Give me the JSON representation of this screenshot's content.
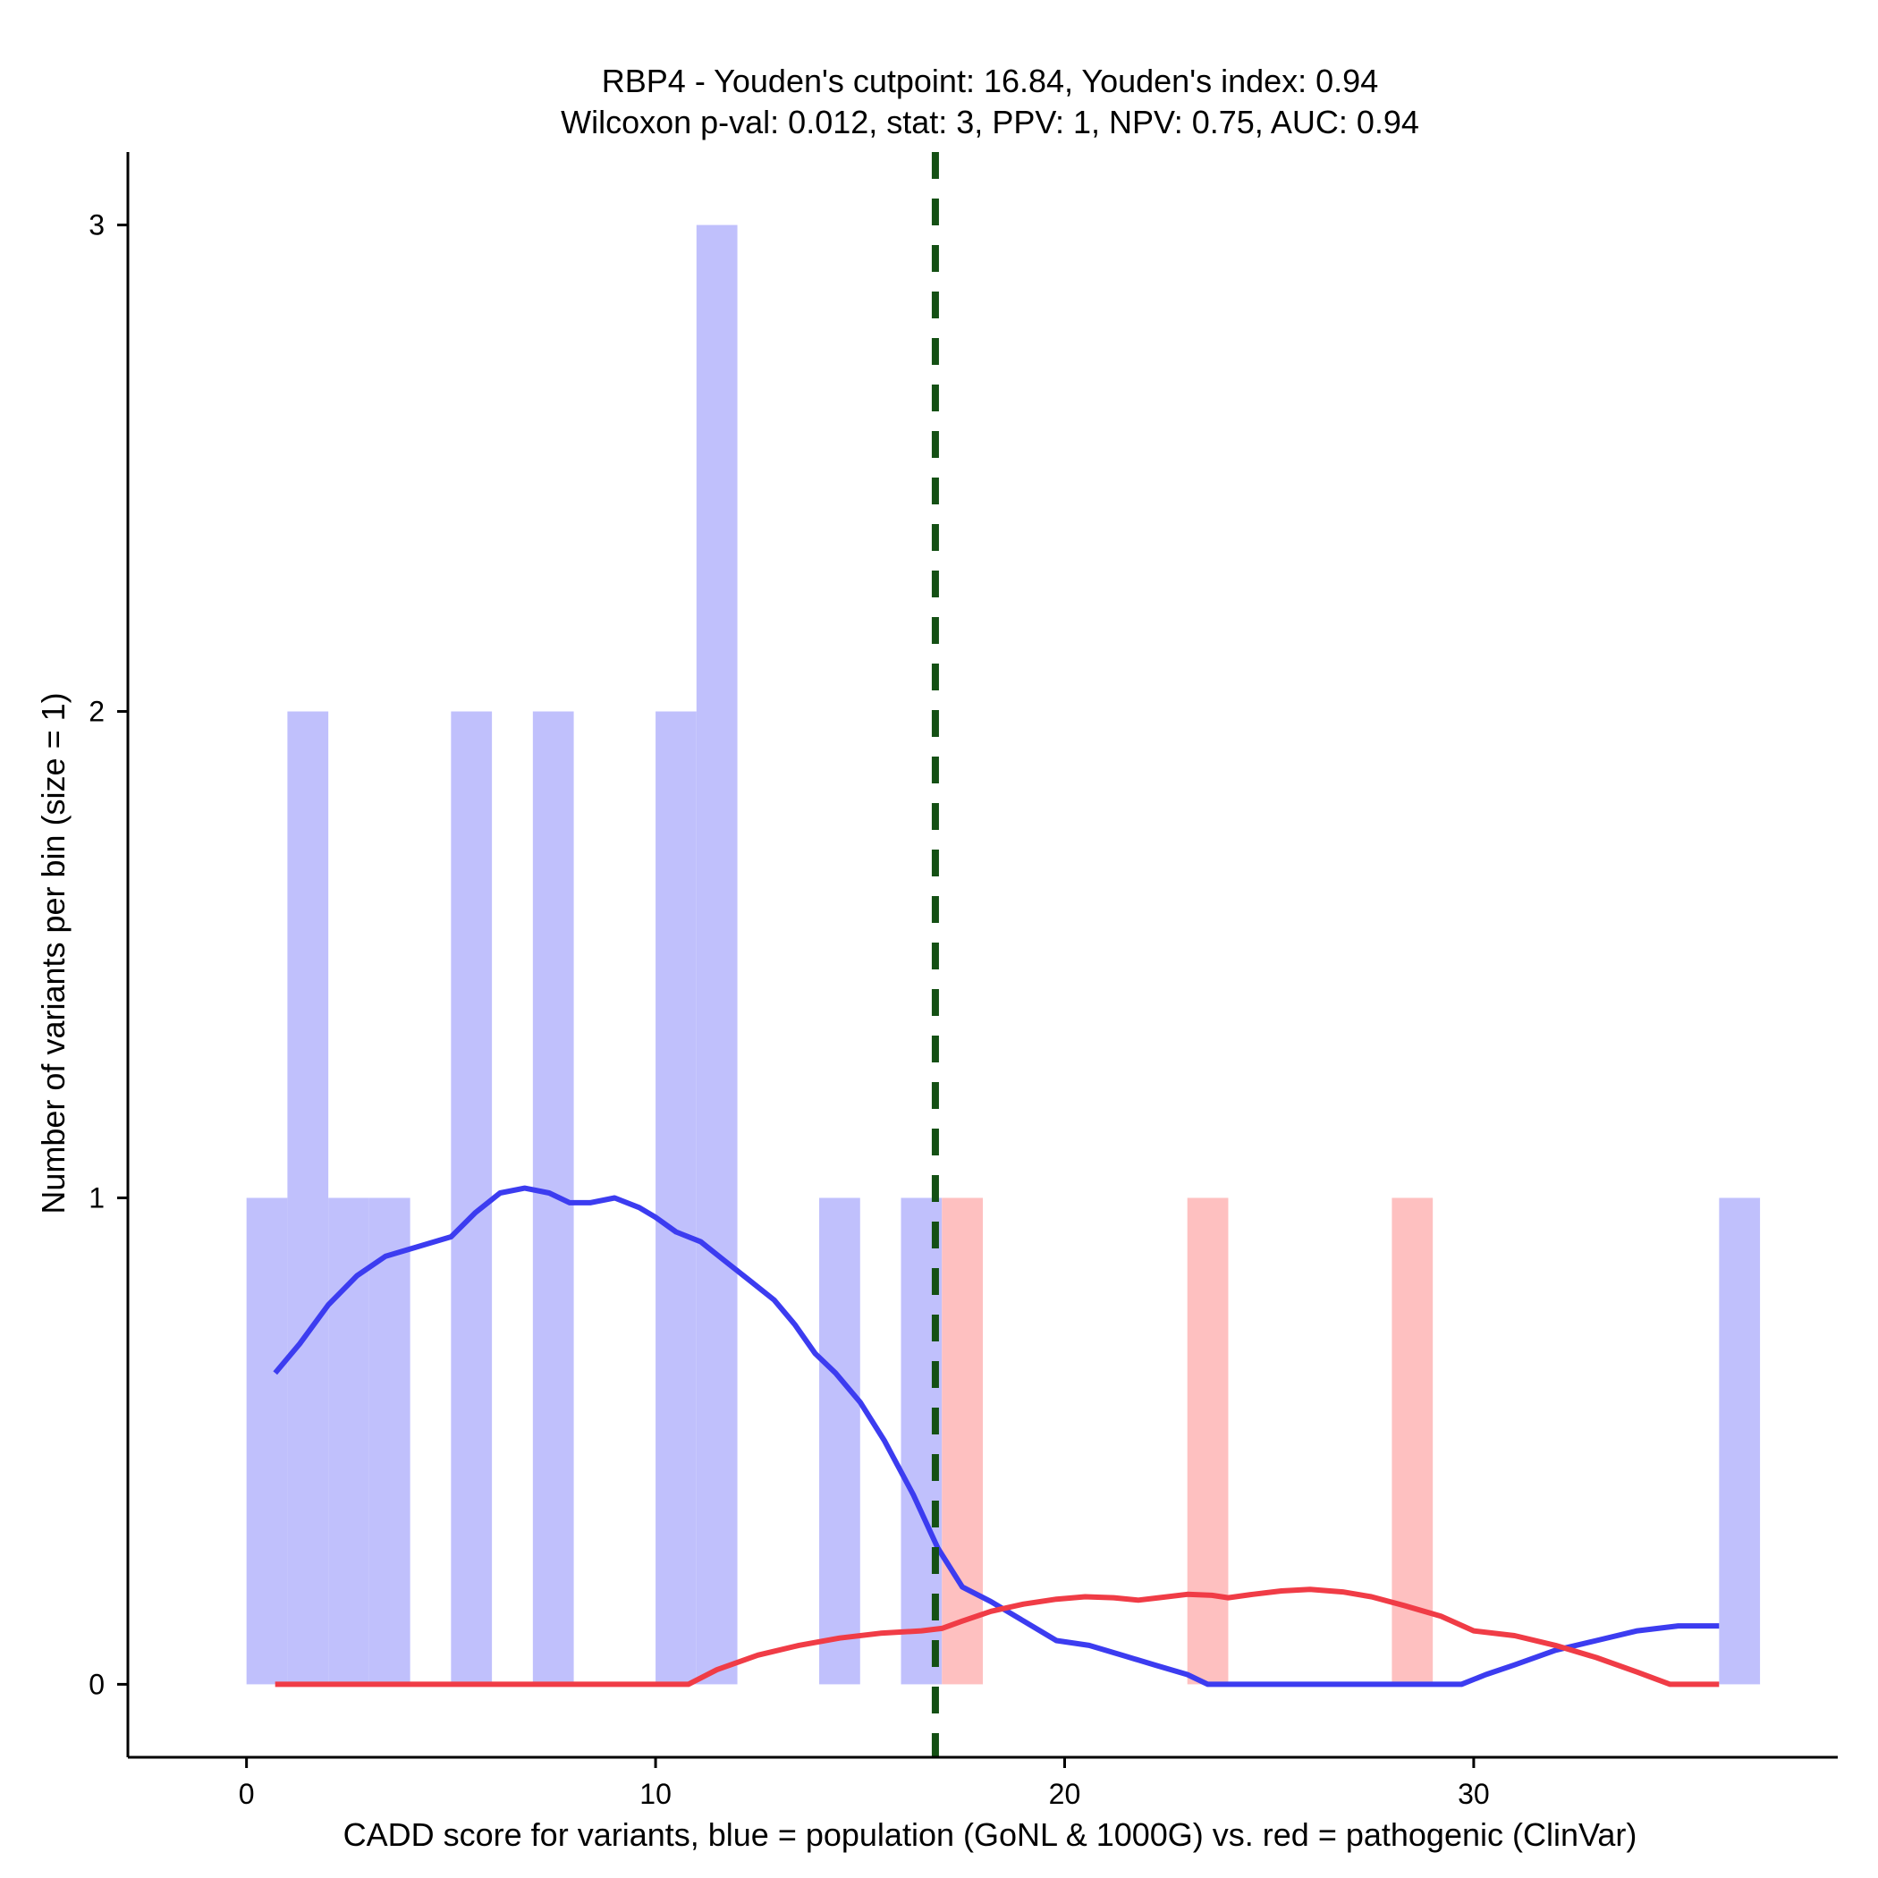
{
  "chart_data": {
    "type": "histogram",
    "title_line1": "RBP4 - Youden's cutpoint: 16.84, Youden's index: 0.94",
    "title_line2": "Wilcoxon p-val: 0.012, stat: 3, PPV: 1, NPV: 0.75, AUC: 0.94",
    "xlabel": "CADD score for variants, blue = population (GoNL & 1000G) vs. red = pathogenic (ClinVar)",
    "ylabel": "Number of variants per bin (size = 1)",
    "xlim": [
      -2.9,
      38.9
    ],
    "ylim": [
      -0.15,
      3.15
    ],
    "xticks": [
      0,
      10,
      20,
      30
    ],
    "xtick_labels": [
      "0",
      "10",
      "20",
      "30"
    ],
    "yticks": [
      0,
      1,
      2,
      3
    ],
    "ytick_labels": [
      "0",
      "1",
      "2",
      "3"
    ],
    "bin_width": 1,
    "cutpoint": 16.84,
    "colors": {
      "population_bar": "#c0c0fc",
      "pathogenic_bar": "#fec0c0",
      "population_curve": "#3c3cf0",
      "pathogenic_curve": "#f03c46",
      "cutpoint_line": "#145014"
    },
    "series": [
      {
        "name": "population (GoNL & 1000G)",
        "bins": [
          [
            0,
            1
          ],
          [
            1,
            2
          ],
          [
            2,
            1
          ],
          [
            3,
            1
          ],
          [
            5,
            2
          ],
          [
            7,
            2
          ],
          [
            10,
            2
          ],
          [
            11,
            3
          ],
          [
            14,
            1
          ],
          [
            16,
            1
          ],
          [
            36,
            1
          ]
        ],
        "density": [
          [
            0.7,
            0.64
          ],
          [
            1.3,
            0.7
          ],
          [
            2.0,
            0.78
          ],
          [
            2.7,
            0.84
          ],
          [
            3.4,
            0.88
          ],
          [
            4.2,
            0.9
          ],
          [
            5.0,
            0.92
          ],
          [
            5.6,
            0.97
          ],
          [
            6.2,
            1.01
          ],
          [
            6.8,
            1.02
          ],
          [
            7.4,
            1.01
          ],
          [
            7.9,
            0.99
          ],
          [
            8.4,
            0.99
          ],
          [
            9.0,
            1.0
          ],
          [
            9.6,
            0.98
          ],
          [
            10.0,
            0.96
          ],
          [
            10.5,
            0.93
          ],
          [
            11.1,
            0.91
          ],
          [
            11.7,
            0.87
          ],
          [
            12.3,
            0.83
          ],
          [
            12.9,
            0.79
          ],
          [
            13.4,
            0.74
          ],
          [
            13.9,
            0.68
          ],
          [
            14.4,
            0.64
          ],
          [
            15.0,
            0.58
          ],
          [
            15.6,
            0.5
          ],
          [
            16.3,
            0.39
          ],
          [
            16.9,
            0.28
          ],
          [
            17.5,
            0.2
          ],
          [
            18.2,
            0.17
          ],
          [
            19.0,
            0.13
          ],
          [
            19.8,
            0.09
          ],
          [
            20.6,
            0.08
          ],
          [
            21.4,
            0.06
          ],
          [
            22.2,
            0.04
          ],
          [
            23.0,
            0.02
          ],
          [
            23.5,
            0.0
          ],
          [
            25.0,
            0.0
          ],
          [
            27.0,
            0.0
          ],
          [
            29.0,
            0.0
          ],
          [
            29.7,
            0.0
          ],
          [
            30.3,
            0.02
          ],
          [
            31.0,
            0.04
          ],
          [
            32.0,
            0.07
          ],
          [
            33.0,
            0.09
          ],
          [
            34.0,
            0.11
          ],
          [
            35.0,
            0.12
          ],
          [
            36.0,
            0.12
          ]
        ]
      },
      {
        "name": "pathogenic (ClinVar)",
        "bins": [
          [
            17,
            1
          ],
          [
            23,
            1
          ],
          [
            28,
            1
          ]
        ],
        "density": [
          [
            0.7,
            0.0
          ],
          [
            4.0,
            0.0
          ],
          [
            8.0,
            0.0
          ],
          [
            10.8,
            0.0
          ],
          [
            11.5,
            0.03
          ],
          [
            12.5,
            0.06
          ],
          [
            13.5,
            0.08
          ],
          [
            14.5,
            0.095
          ],
          [
            15.5,
            0.105
          ],
          [
            16.5,
            0.11
          ],
          [
            17.0,
            0.115
          ],
          [
            17.5,
            0.13
          ],
          [
            18.2,
            0.15
          ],
          [
            19.0,
            0.165
          ],
          [
            19.8,
            0.175
          ],
          [
            20.5,
            0.18
          ],
          [
            21.2,
            0.178
          ],
          [
            21.8,
            0.173
          ],
          [
            22.3,
            0.178
          ],
          [
            23.0,
            0.185
          ],
          [
            23.6,
            0.183
          ],
          [
            24.0,
            0.178
          ],
          [
            24.6,
            0.185
          ],
          [
            25.3,
            0.192
          ],
          [
            26.0,
            0.195
          ],
          [
            26.8,
            0.19
          ],
          [
            27.5,
            0.18
          ],
          [
            28.3,
            0.162
          ],
          [
            29.2,
            0.14
          ],
          [
            30.0,
            0.11
          ],
          [
            31.0,
            0.1
          ],
          [
            32.0,
            0.08
          ],
          [
            33.0,
            0.055
          ],
          [
            34.0,
            0.025
          ],
          [
            34.8,
            0.0
          ],
          [
            36.0,
            0.0
          ]
        ]
      }
    ]
  }
}
